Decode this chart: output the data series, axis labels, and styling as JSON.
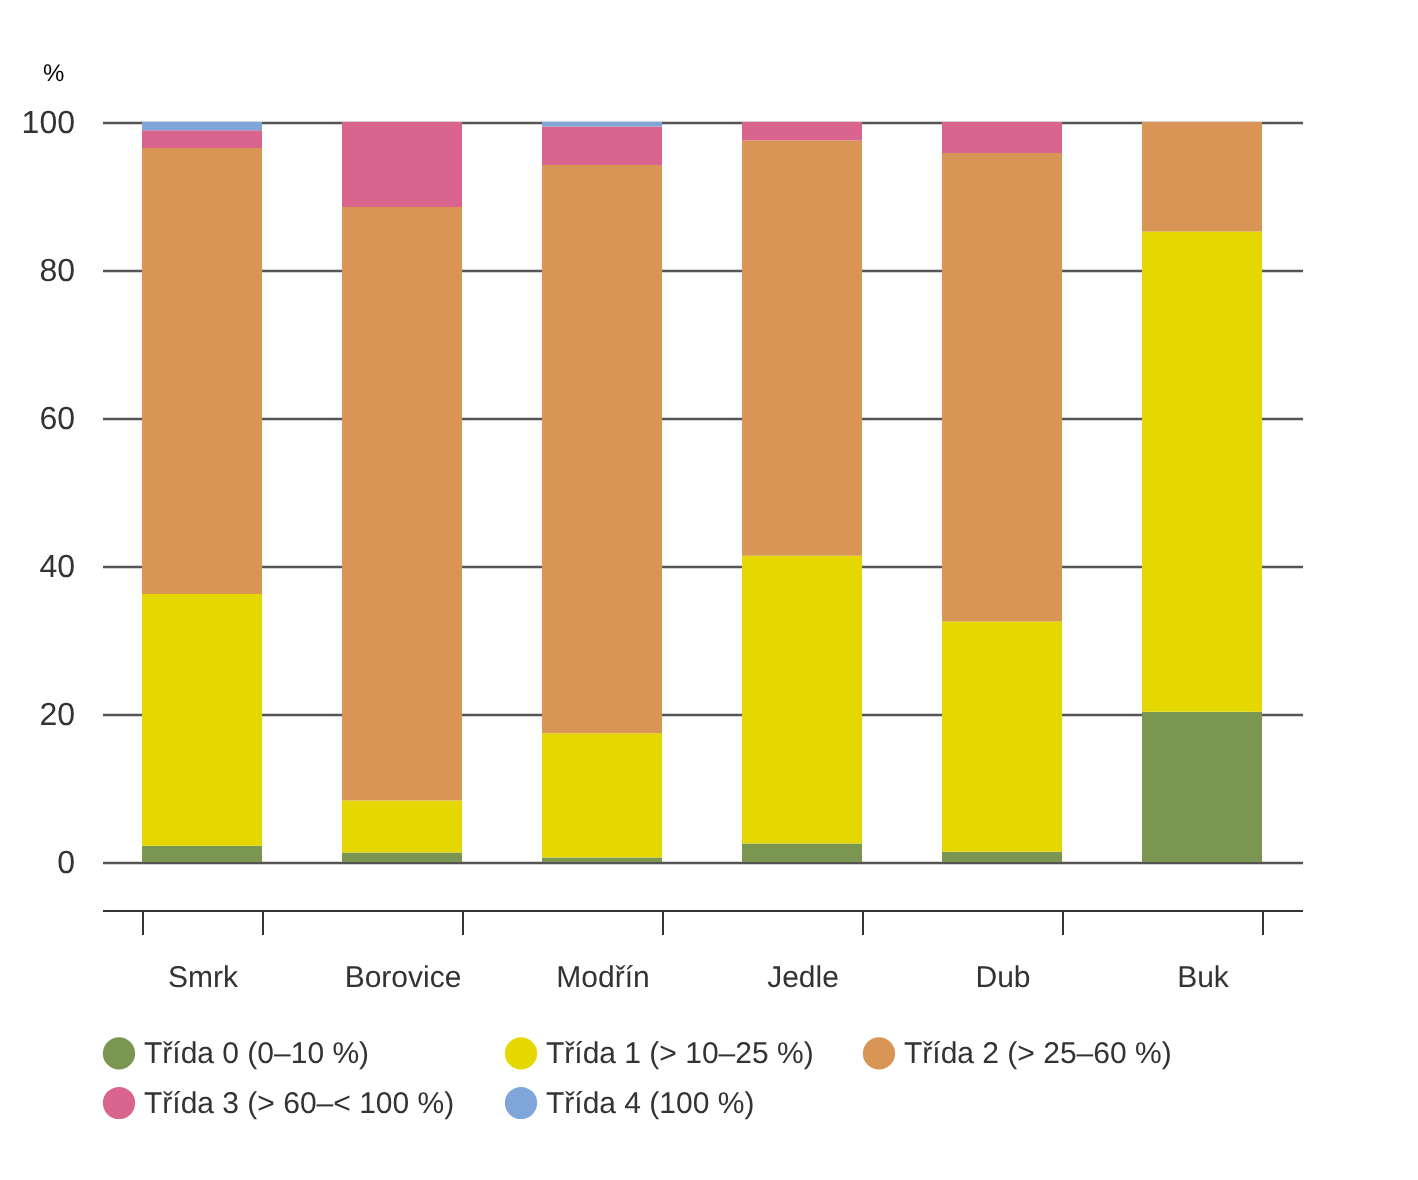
{
  "chart_data": {
    "type": "bar",
    "stacked": true,
    "ylabel": "%",
    "categories": [
      "Smrk",
      "Borovice",
      "Modřín",
      "Jedle",
      "Dub",
      "Buk"
    ],
    "series": [
      {
        "name": "Třída 0 (0–10 %)",
        "color": "#7a9650",
        "values": [
          2.2,
          1.3,
          0.6,
          2.5,
          1.4,
          20.3
        ]
      },
      {
        "name": "Třída 1 (> 10–25 %)",
        "color": "#e5d800",
        "values": [
          34,
          7,
          16.8,
          38.9,
          31.1,
          64.9
        ]
      },
      {
        "name": "Třída 2 (> 25–60 %)",
        "color": "#d89555",
        "values": [
          60.3,
          80.2,
          76.8,
          56.1,
          63.3,
          14.8
        ]
      },
      {
        "name": "Třída 3 (> 60–< 100 %)",
        "color": "#d9658f",
        "values": [
          2.4,
          11.5,
          5.2,
          2.5,
          4.2,
          0
        ]
      },
      {
        "name": "Třída 4 (100 %)",
        "color": "#80a5d8",
        "values": [
          1.1,
          0,
          0.6,
          0,
          0,
          0
        ]
      }
    ],
    "ylim": [
      0,
      100
    ],
    "yticks": [
      0,
      20,
      40,
      60,
      80,
      100
    ],
    "grid": "y",
    "legend": "bottom"
  }
}
